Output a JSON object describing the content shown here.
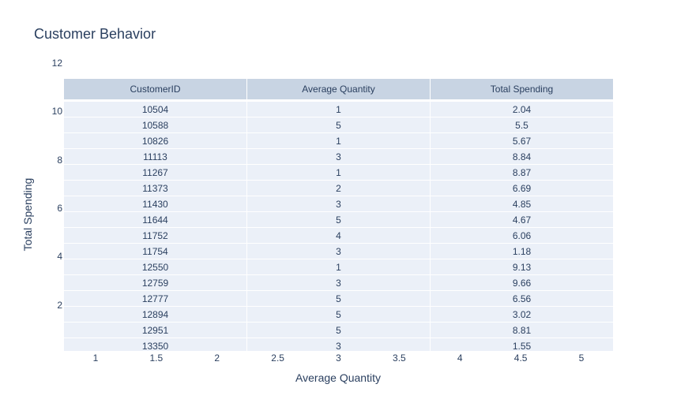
{
  "chart_data": {
    "type": "table",
    "title": "Customer Behavior",
    "xlabel": "Average Quantity",
    "ylabel": "Total Spending",
    "x_ticks": [
      "1",
      "1.5",
      "2",
      "2.5",
      "3",
      "3.5",
      "4",
      "4.5",
      "5"
    ],
    "y_ticks": [
      "2",
      "4",
      "6",
      "8",
      "10",
      "12"
    ],
    "xlim": [
      0.74,
      5.26
    ],
    "ylim": [
      0.0,
      12.0
    ],
    "columns": [
      "CustomerID",
      "Average Quantity",
      "Total Spending"
    ],
    "rows": [
      [
        "10504",
        "1",
        "2.04"
      ],
      [
        "10588",
        "5",
        "5.5"
      ],
      [
        "10826",
        "1",
        "5.67"
      ],
      [
        "11113",
        "3",
        "8.84"
      ],
      [
        "11267",
        "1",
        "8.87"
      ],
      [
        "11373",
        "2",
        "6.69"
      ],
      [
        "11430",
        "3",
        "4.85"
      ],
      [
        "11644",
        "5",
        "4.67"
      ],
      [
        "11752",
        "4",
        "6.06"
      ],
      [
        "11754",
        "3",
        "1.18"
      ],
      [
        "12550",
        "1",
        "9.13"
      ],
      [
        "12759",
        "3",
        "9.66"
      ],
      [
        "12777",
        "5",
        "6.56"
      ],
      [
        "12894",
        "5",
        "3.02"
      ],
      [
        "12951",
        "5",
        "8.81"
      ],
      [
        "13350",
        "3",
        "1.55"
      ]
    ]
  }
}
